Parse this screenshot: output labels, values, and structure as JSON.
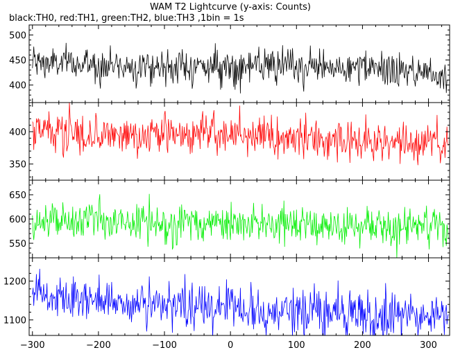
{
  "chart_data": {
    "type": "line",
    "title": "WAM T2 Lightcurve (y-axis: Counts)",
    "subtitle": "black:TH0, red:TH1, green:TH2, blue:TH3 ,1bin = 1s",
    "xlabel": "",
    "ylabel": "",
    "xlim": [
      -305,
      332
    ],
    "x_range": [
      -300,
      330
    ],
    "x_ticks": [
      -300,
      -200,
      -100,
      0,
      100,
      200,
      300
    ],
    "grid": false,
    "panels": [
      {
        "name": "TH0",
        "color": "#000000",
        "ylim": [
          365,
          520
        ],
        "y_ticks": [
          400,
          450,
          500
        ],
        "trend": [
          [
            -300,
            445
          ],
          [
            -200,
            440
          ],
          [
            -100,
            437
          ],
          [
            0,
            437
          ],
          [
            100,
            436
          ],
          [
            200,
            433
          ],
          [
            300,
            425
          ],
          [
            330,
            418
          ]
        ],
        "noise_sd": 17
      },
      {
        "name": "TH1",
        "color": "#ff0000",
        "ylim": [
          325,
          445
        ],
        "y_ticks": [
          350,
          400
        ],
        "trend": [
          [
            -300,
            400
          ],
          [
            -200,
            397
          ],
          [
            -100,
            395
          ],
          [
            0,
            395
          ],
          [
            100,
            392
          ],
          [
            150,
            383
          ],
          [
            200,
            385
          ],
          [
            300,
            382
          ],
          [
            330,
            380
          ]
        ],
        "noise_sd": 15
      },
      {
        "name": "TH2",
        "color": "#00ee00",
        "ylim": [
          520,
          680
        ],
        "y_ticks": [
          550,
          600,
          650
        ],
        "trend": [
          [
            -300,
            592
          ],
          [
            -200,
            592
          ],
          [
            -100,
            590
          ],
          [
            0,
            590
          ],
          [
            100,
            588
          ],
          [
            200,
            585
          ],
          [
            300,
            582
          ],
          [
            330,
            580
          ]
        ],
        "noise_sd": 20
      },
      {
        "name": "TH3",
        "color": "#0000ff",
        "ylim": [
          1060,
          1260
        ],
        "y_ticks": [
          1100,
          1200
        ],
        "trend": [
          [
            -300,
            1160
          ],
          [
            -200,
            1150
          ],
          [
            -100,
            1140
          ],
          [
            0,
            1130
          ],
          [
            100,
            1120
          ],
          [
            200,
            1115
          ],
          [
            300,
            1108
          ],
          [
            330,
            1105
          ]
        ],
        "noise_sd": 28
      }
    ]
  }
}
